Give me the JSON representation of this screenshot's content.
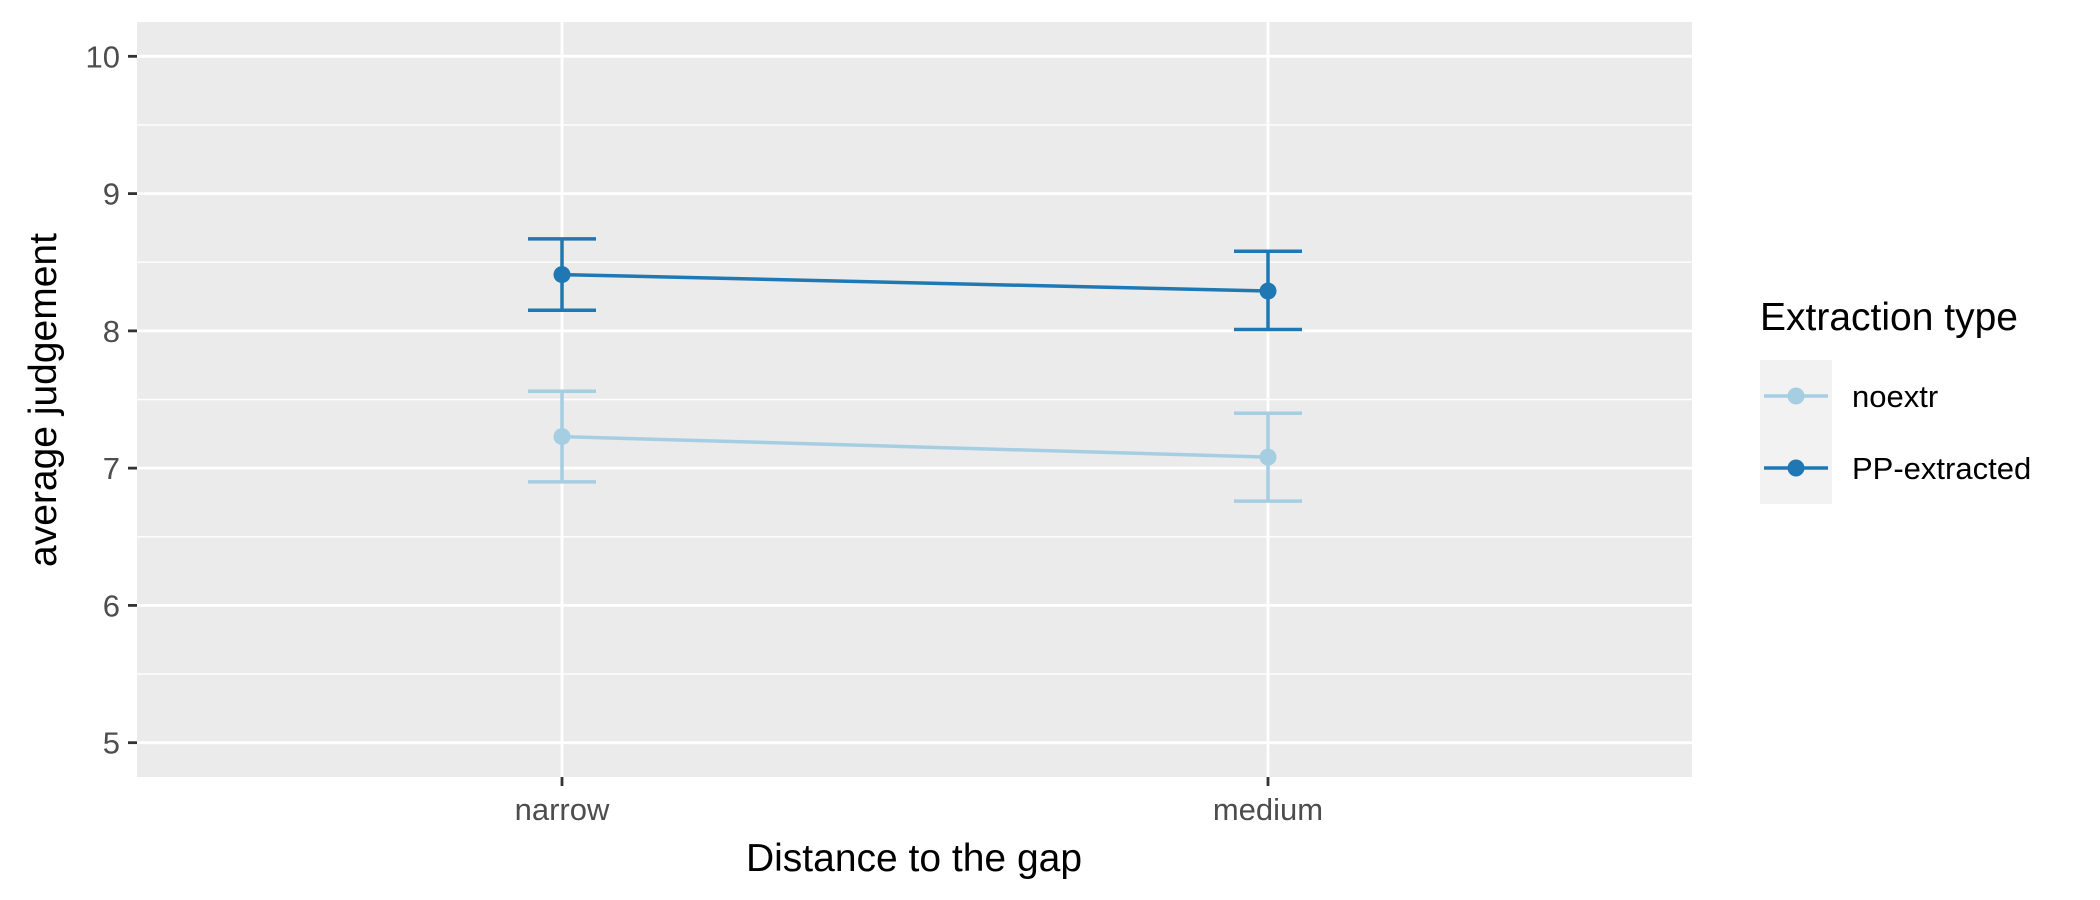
{
  "chart_data": {
    "type": "line",
    "title": "",
    "xlabel": "Distance to the gap",
    "ylabel": "average judgement",
    "categories": [
      "narrow",
      "medium"
    ],
    "ylim": [
      4.75,
      10.25
    ],
    "yticks": [
      5,
      6,
      7,
      8,
      9,
      10
    ],
    "grid": true,
    "legend": {
      "title": "Extraction type",
      "position": "right"
    },
    "series": [
      {
        "name": "noextr",
        "color": "#a6cee3",
        "values": [
          7.23,
          7.08
        ],
        "error_lower": [
          6.9,
          6.76
        ],
        "error_upper": [
          7.56,
          7.4
        ]
      },
      {
        "name": "PP-extracted",
        "color": "#1f78b4",
        "values": [
          8.41,
          8.29
        ],
        "error_lower": [
          8.15,
          8.01
        ],
        "error_upper": [
          8.67,
          8.58
        ]
      }
    ]
  }
}
